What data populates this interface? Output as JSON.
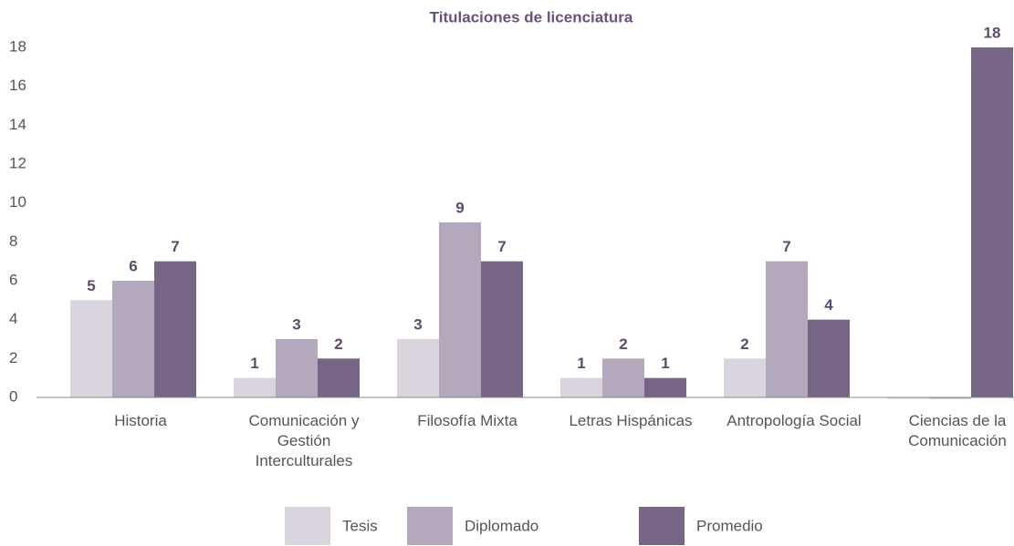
{
  "chart_data": {
    "type": "bar",
    "title": "Titulaciones de licenciatura",
    "categories": [
      "Historia",
      "Comunicación y Gestión Interculturales",
      "Filosofía Mixta",
      "Letras Hispánicas",
      "Antropología Social",
      "Ciencias de la Comunicación"
    ],
    "series": [
      {
        "name": "Tesis",
        "color": "#d9d4dd",
        "values": [
          5,
          1,
          3,
          1,
          2,
          0
        ]
      },
      {
        "name": "Diplomado",
        "color": "#b4a8bc",
        "values": [
          6,
          3,
          9,
          2,
          7,
          0
        ]
      },
      {
        "name": "Promedio",
        "color": "#776586",
        "values": [
          7,
          2,
          7,
          1,
          4,
          18
        ]
      }
    ],
    "ylim": [
      0,
      18
    ],
    "yticks": [
      0,
      2,
      4,
      6,
      8,
      10,
      12,
      14,
      16,
      18
    ],
    "grid": false,
    "legend": "bottom"
  }
}
